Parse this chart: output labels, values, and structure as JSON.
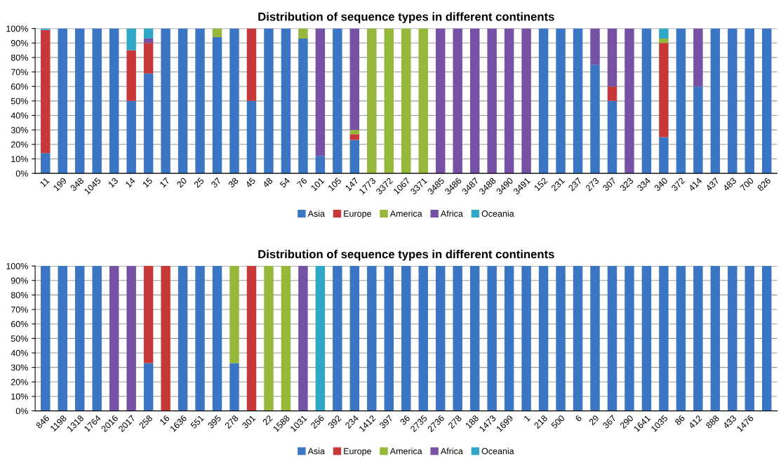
{
  "chart_data": [
    {
      "type": "bar",
      "stacked": true,
      "title": "Distribution of sequence types in different continents",
      "legend": "bottom",
      "grid": "y",
      "ylim": [
        0,
        100
      ],
      "yticks": [
        {
          "value": 0,
          "label": "0%"
        },
        {
          "value": 10,
          "label": "10%"
        },
        {
          "value": 20,
          "label": "20%"
        },
        {
          "value": 30,
          "label": "30%"
        },
        {
          "value": 40,
          "label": "40%"
        },
        {
          "value": 50,
          "label": "50%"
        },
        {
          "value": 60,
          "label": "60%"
        },
        {
          "value": 70,
          "label": "70%"
        },
        {
          "value": 80,
          "label": "80%"
        },
        {
          "value": 90,
          "label": "90%"
        },
        {
          "value": 100,
          "label": "100%"
        }
      ],
      "categories": [
        "11",
        "199",
        "348",
        "1045",
        "13",
        "14",
        "15",
        "17",
        "20",
        "25",
        "37",
        "38",
        "45",
        "48",
        "54",
        "76",
        "101",
        "105",
        "147",
        "1773",
        "3372",
        "1067",
        "3371",
        "3485",
        "3486",
        "3487",
        "3488",
        "3490",
        "3491",
        "152",
        "231",
        "237",
        "273",
        "307",
        "323",
        "334",
        "340",
        "372",
        "414",
        "437",
        "483",
        "700",
        "826"
      ],
      "series": [
        {
          "name": "Asia",
          "color": "#3a76c4",
          "values": [
            14,
            100,
            100,
            100,
            100,
            50,
            69,
            100,
            100,
            100,
            94,
            100,
            50,
            100,
            100,
            93,
            12,
            100,
            23,
            0,
            0,
            0,
            0,
            0,
            0,
            0,
            0,
            0,
            0,
            100,
            100,
            100,
            75,
            50,
            0,
            100,
            25,
            100,
            60,
            100,
            100,
            100,
            100
          ]
        },
        {
          "name": "Europe",
          "color": "#c83838",
          "values": [
            85,
            0,
            0,
            0,
            0,
            35,
            21,
            0,
            0,
            0,
            0,
            0,
            50,
            0,
            0,
            0,
            0,
            0,
            4,
            0,
            0,
            0,
            0,
            0,
            0,
            0,
            0,
            0,
            0,
            0,
            0,
            0,
            0,
            10,
            0,
            0,
            65,
            0,
            0,
            0,
            0,
            0,
            0
          ]
        },
        {
          "name": "America",
          "color": "#96b83a",
          "values": [
            0,
            0,
            0,
            0,
            0,
            0,
            0,
            0,
            0,
            0,
            6,
            0,
            0,
            0,
            0,
            7,
            0,
            0,
            3,
            100,
            100,
            100,
            100,
            0,
            0,
            0,
            0,
            0,
            0,
            0,
            0,
            0,
            0,
            0,
            0,
            0,
            3,
            0,
            0,
            0,
            0,
            0,
            0
          ]
        },
        {
          "name": "Africa",
          "color": "#7751a6",
          "values": [
            0,
            0,
            0,
            0,
            0,
            0,
            3,
            0,
            0,
            0,
            0,
            0,
            0,
            0,
            0,
            0,
            88,
            0,
            70,
            0,
            0,
            0,
            0,
            100,
            100,
            100,
            100,
            100,
            100,
            0,
            0,
            0,
            25,
            40,
            100,
            0,
            0,
            0,
            40,
            0,
            0,
            0,
            0
          ]
        },
        {
          "name": "Oceania",
          "color": "#2fa8c8",
          "values": [
            1,
            0,
            0,
            0,
            0,
            15,
            7,
            0,
            0,
            0,
            0,
            0,
            0,
            0,
            0,
            0,
            0,
            0,
            0,
            0,
            0,
            0,
            0,
            0,
            0,
            0,
            0,
            0,
            0,
            0,
            0,
            0,
            0,
            0,
            0,
            0,
            7,
            0,
            0,
            0,
            0,
            0,
            0
          ]
        }
      ]
    },
    {
      "type": "bar",
      "stacked": true,
      "title": "Distribution of sequence types in different continents",
      "legend": "bottom",
      "grid": "y",
      "ylim": [
        0,
        100
      ],
      "yticks": [
        {
          "value": 0,
          "label": "0%"
        },
        {
          "value": 10,
          "label": "10%"
        },
        {
          "value": 20,
          "label": "20%"
        },
        {
          "value": 30,
          "label": "30%"
        },
        {
          "value": 40,
          "label": "40%"
        },
        {
          "value": 50,
          "label": "50%"
        },
        {
          "value": 60,
          "label": "60%"
        },
        {
          "value": 70,
          "label": "70%"
        },
        {
          "value": 80,
          "label": "80%"
        },
        {
          "value": 90,
          "label": "90%"
        },
        {
          "value": 100,
          "label": "100%"
        }
      ],
      "categories": [
        "846",
        "1198",
        "1318",
        "1764",
        "2016",
        "2017",
        "258",
        "16",
        "1636",
        "551",
        "395",
        "278",
        "301",
        "22",
        "1588",
        "1031",
        "256",
        "392",
        "234",
        "1412",
        "397",
        "36",
        "2735",
        "2736",
        "278",
        "188",
        "1473",
        "1699",
        "1",
        "218",
        "500",
        "6",
        "29",
        "367",
        "290",
        "1641",
        "1035",
        "86",
        "412",
        "888",
        "433",
        "1476",
        null
      ],
      "series": [
        {
          "name": "Asia",
          "color": "#3a76c4",
          "values": [
            100,
            100,
            100,
            100,
            0,
            0,
            33,
            0,
            100,
            100,
            100,
            33,
            0,
            0,
            0,
            0,
            0,
            100,
            100,
            100,
            100,
            100,
            100,
            100,
            100,
            100,
            100,
            100,
            100,
            100,
            100,
            100,
            100,
            100,
            100,
            100,
            100,
            100,
            100,
            100,
            100,
            100,
            100
          ]
        },
        {
          "name": "Europe",
          "color": "#c83838",
          "values": [
            0,
            0,
            0,
            0,
            0,
            0,
            67,
            100,
            0,
            0,
            0,
            0,
            100,
            0,
            0,
            0,
            0,
            0,
            0,
            0,
            0,
            0,
            0,
            0,
            0,
            0,
            0,
            0,
            0,
            0,
            0,
            0,
            0,
            0,
            0,
            0,
            0,
            0,
            0,
            0,
            0,
            0,
            0
          ]
        },
        {
          "name": "America",
          "color": "#96b83a",
          "values": [
            0,
            0,
            0,
            0,
            0,
            0,
            0,
            0,
            0,
            0,
            0,
            67,
            0,
            100,
            100,
            0,
            0,
            0,
            0,
            0,
            0,
            0,
            0,
            0,
            0,
            0,
            0,
            0,
            0,
            0,
            0,
            0,
            0,
            0,
            0,
            0,
            0,
            0,
            0,
            0,
            0,
            0,
            0
          ]
        },
        {
          "name": "Africa",
          "color": "#7751a6",
          "values": [
            0,
            0,
            0,
            0,
            100,
            100,
            0,
            0,
            0,
            0,
            0,
            0,
            0,
            0,
            0,
            100,
            0,
            0,
            0,
            0,
            0,
            0,
            0,
            0,
            0,
            0,
            0,
            0,
            0,
            0,
            0,
            0,
            0,
            0,
            0,
            0,
            0,
            0,
            0,
            0,
            0,
            0,
            0
          ]
        },
        {
          "name": "Oceania",
          "color": "#2fa8c8",
          "values": [
            0,
            0,
            0,
            0,
            0,
            0,
            0,
            0,
            0,
            0,
            0,
            0,
            0,
            0,
            0,
            0,
            100,
            0,
            0,
            0,
            0,
            0,
            0,
            0,
            0,
            0,
            0,
            0,
            0,
            0,
            0,
            0,
            0,
            0,
            0,
            0,
            0,
            0,
            0,
            0,
            0,
            0,
            0
          ]
        }
      ]
    }
  ]
}
